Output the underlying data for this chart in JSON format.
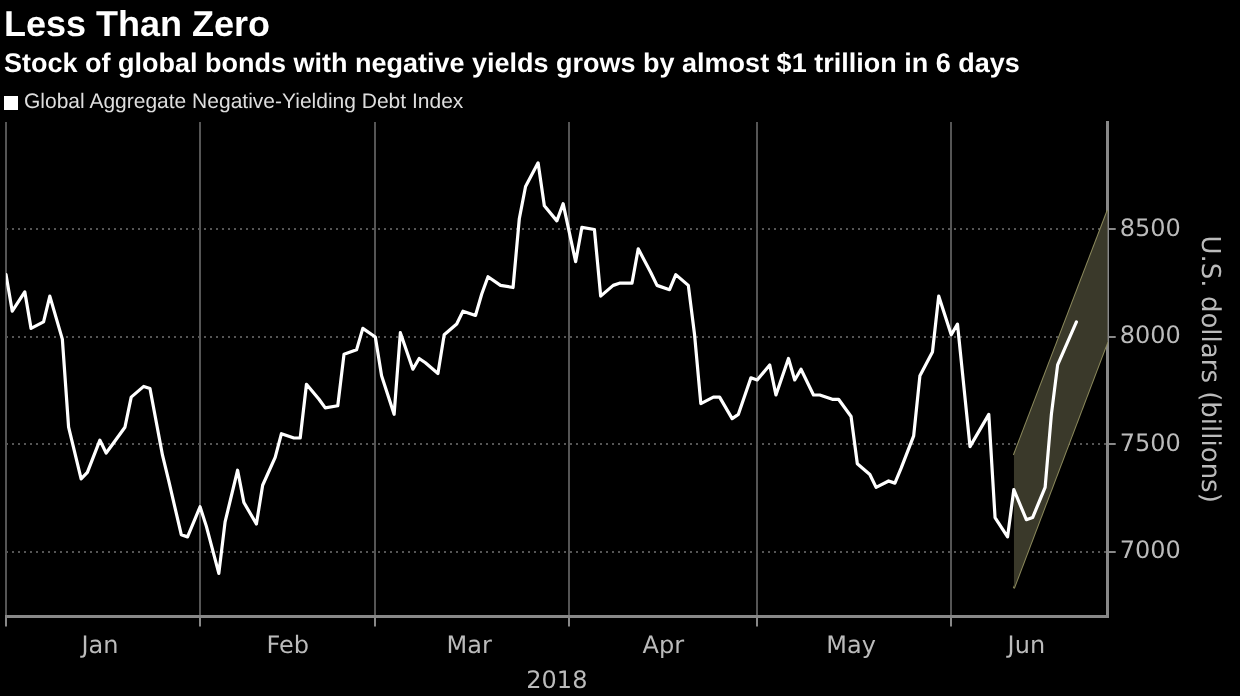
{
  "chart_data": {
    "type": "line",
    "title": "Less Than Zero",
    "subtitle": "Stock of global bonds with negative yields grows by almost $1 trillion in 6 days",
    "xlabel": "2018",
    "ylabel": "U.S. dollars (billions)",
    "legend": "top left",
    "grid": true,
    "xlim": [
      "2018-01-01",
      "2018-06-26"
    ],
    "xticks": [
      {
        "value": "2018-01-01",
        "label": null
      },
      {
        "value": "2018-01-16",
        "label": "Jan"
      },
      {
        "value": "2018-02-01",
        "label": null
      },
      {
        "value": "2018-02-15",
        "label": "Feb"
      },
      {
        "value": "2018-03-01",
        "label": null
      },
      {
        "value": "2018-03-16",
        "label": "Mar"
      },
      {
        "value": "2018-04-01",
        "label": null
      },
      {
        "value": "2018-04-16",
        "label": "Apr"
      },
      {
        "value": "2018-05-01",
        "label": null
      },
      {
        "value": "2018-05-16",
        "label": "May"
      },
      {
        "value": "2018-06-01",
        "label": null
      },
      {
        "value": "2018-06-13",
        "label": "Jun"
      }
    ],
    "ylim": [
      6700,
      9000
    ],
    "yticks": [
      7000,
      7500,
      8000,
      8500
    ],
    "series": [
      {
        "name": "Global Aggregate Negative-Yielding Debt Index",
        "color": "#ffffff",
        "x": [
          "2018-01-01",
          "2018-01-02",
          "2018-01-04",
          "2018-01-05",
          "2018-01-07",
          "2018-01-08",
          "2018-01-10",
          "2018-01-11",
          "2018-01-13",
          "2018-01-14",
          "2018-01-16",
          "2018-01-17",
          "2018-01-18",
          "2018-01-20",
          "2018-01-21",
          "2018-01-23",
          "2018-01-24",
          "2018-01-26",
          "2018-01-27",
          "2018-01-29",
          "2018-01-30",
          "2018-02-01",
          "2018-02-02",
          "2018-02-04",
          "2018-02-05",
          "2018-02-07",
          "2018-02-08",
          "2018-02-10",
          "2018-02-11",
          "2018-02-13",
          "2018-02-14",
          "2018-02-16",
          "2018-02-17",
          "2018-02-18",
          "2018-02-20",
          "2018-02-21",
          "2018-02-23",
          "2018-02-24",
          "2018-02-26",
          "2018-02-27",
          "2018-03-01",
          "2018-03-02",
          "2018-03-04",
          "2018-03-05",
          "2018-03-07",
          "2018-03-08",
          "2018-03-09",
          "2018-03-11",
          "2018-03-12",
          "2018-03-14",
          "2018-03-15",
          "2018-03-17",
          "2018-03-18",
          "2018-03-19",
          "2018-03-21",
          "2018-03-23",
          "2018-03-24",
          "2018-03-25",
          "2018-03-27",
          "2018-03-28",
          "2018-03-30",
          "2018-03-31",
          "2018-04-02",
          "2018-04-03",
          "2018-04-05",
          "2018-04-06",
          "2018-04-08",
          "2018-04-09",
          "2018-04-11",
          "2018-04-12",
          "2018-04-14",
          "2018-04-15",
          "2018-04-17",
          "2018-04-18",
          "2018-04-20",
          "2018-04-21",
          "2018-04-22",
          "2018-04-24",
          "2018-04-25",
          "2018-04-27",
          "2018-04-28",
          "2018-04-30",
          "2018-05-01",
          "2018-05-03",
          "2018-05-04",
          "2018-05-06",
          "2018-05-07",
          "2018-05-08",
          "2018-05-10",
          "2018-05-11",
          "2018-05-13",
          "2018-05-14",
          "2018-05-16",
          "2018-05-17",
          "2018-05-19",
          "2018-05-20",
          "2018-05-22",
          "2018-05-23",
          "2018-05-24",
          "2018-05-26",
          "2018-05-27",
          "2018-05-29",
          "2018-05-30",
          "2018-06-01",
          "2018-06-02",
          "2018-06-04",
          "2018-06-07",
          "2018-06-08",
          "2018-06-10",
          "2018-06-11",
          "2018-06-13",
          "2018-06-14",
          "2018-06-16",
          "2018-06-17",
          "2018-06-18",
          "2018-06-21"
        ],
        "values": [
          8290,
          8120,
          8210,
          8040,
          8070,
          8190,
          7990,
          7580,
          7340,
          7370,
          7520,
          7460,
          7500,
          7580,
          7720,
          7770,
          7760,
          7450,
          7330,
          7080,
          7070,
          7210,
          7120,
          6900,
          7140,
          7380,
          7230,
          7130,
          7310,
          7440,
          7550,
          7530,
          7530,
          7780,
          7710,
          7670,
          7680,
          7920,
          7940,
          8040,
          8000,
          7820,
          7640,
          8020,
          7850,
          7900,
          7880,
          7830,
          8010,
          8060,
          8120,
          8100,
          8200,
          8280,
          8240,
          8230,
          8550,
          8700,
          8810,
          8610,
          8540,
          8620,
          8350,
          8510,
          8500,
          8190,
          8240,
          8250,
          8250,
          8410,
          8300,
          8240,
          8220,
          8290,
          8240,
          8010,
          7690,
          7720,
          7720,
          7620,
          7640,
          7810,
          7800,
          7870,
          7730,
          7900,
          7800,
          7850,
          7730,
          7730,
          7710,
          7710,
          7630,
          7410,
          7360,
          7300,
          7330,
          7320,
          7390,
          7540,
          7820,
          7930,
          8190,
          8010,
          8060,
          7490,
          7640,
          7160,
          7070,
          7290,
          7150,
          7160,
          7300,
          7640,
          7870,
          8070
        ]
      },
      {
        "type": "line",
        "color": "#3a392a",
        "x": [
          "2018-06-11",
          "2018-06-26"
        ],
        "values": [
          null,
          null
        ],
        "lower": [
          6830,
          7980
        ],
        "upper": [
          7450,
          8590
        ]
      },
      {
        "type": "line",
        "color": "#8c8a5c",
        "x": [
          "2018-06-11",
          "2018-06-26"
        ],
        "values": [
          6830,
          7980
        ]
      },
      {
        "type": "line",
        "color": "#8c8a5d",
        "x": [
          "2018-06-11",
          "2018-06-26"
        ],
        "values": [
          7450,
          8590
        ]
      }
    ]
  }
}
